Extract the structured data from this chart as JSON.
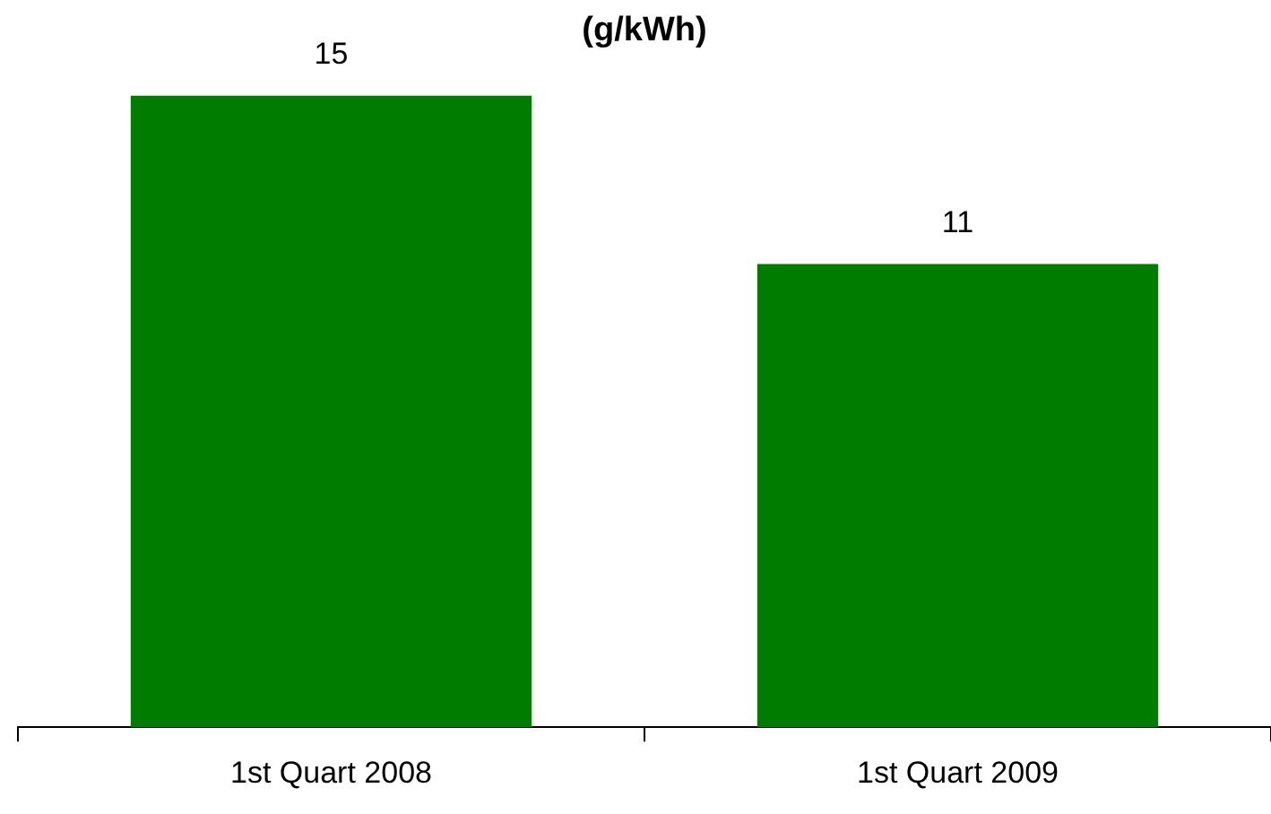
{
  "chart_data": {
    "type": "bar",
    "title": "(g/kWh)",
    "categories": [
      "1st Quart 2008",
      "1st Quart 2009"
    ],
    "values": [
      15,
      11
    ],
    "color": "#007c00",
    "data_labels": true,
    "grid": false,
    "legend": false
  }
}
